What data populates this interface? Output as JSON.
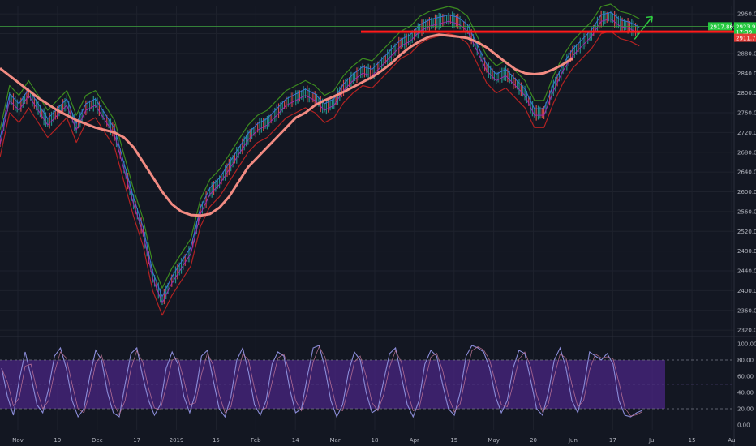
{
  "chart_data": [
    {
      "type": "candlestick",
      "title": "",
      "price_axis": {
        "ticks": [
          "2960.0",
          "2920.0",
          "2880.0",
          "2840.0",
          "2800.0",
          "2760.0",
          "2720.0",
          "2680.0",
          "2640.0",
          "2600.0",
          "2560.0",
          "2520.0",
          "2480.0",
          "2440.0",
          "2400.0",
          "2360.0",
          "2320.0"
        ],
        "ylim": [
          2312,
          2975
        ]
      },
      "time_axis": {
        "ticks": [
          "Nov",
          "19",
          "Dec",
          "17",
          "2019",
          "15",
          "Feb",
          "14",
          "Mar",
          "18",
          "Apr",
          "15",
          "May",
          "20",
          "Jun",
          "17",
          "Jul",
          "15",
          "Au"
        ]
      },
      "price_tags": [
        {
          "text": "2917.862",
          "color": "#26c940"
        },
        {
          "text": "2923.9",
          "color": "#26c940"
        },
        {
          "text": "17:39",
          "color": "#26c940"
        },
        {
          "text": "2911.7",
          "color": "#e53935"
        }
      ],
      "levels": [
        {
          "name": "resistance-red",
          "value": 2924,
          "color": "#ff1a1a"
        },
        {
          "name": "horizontal-green",
          "value": 2935,
          "color": "#3fa33f"
        }
      ],
      "price_series": [
        [
          0,
          2700
        ],
        [
          5,
          2790
        ],
        [
          10,
          2770
        ],
        [
          15,
          2800
        ],
        [
          20,
          2770
        ],
        [
          25,
          2740
        ],
        [
          30,
          2760
        ],
        [
          35,
          2780
        ],
        [
          40,
          2730
        ],
        [
          45,
          2770
        ],
        [
          50,
          2780
        ],
        [
          55,
          2750
        ],
        [
          60,
          2720
        ],
        [
          65,
          2650
        ],
        [
          70,
          2580
        ],
        [
          75,
          2520
        ],
        [
          80,
          2430
        ],
        [
          85,
          2380
        ],
        [
          90,
          2420
        ],
        [
          95,
          2450
        ],
        [
          100,
          2480
        ],
        [
          105,
          2560
        ],
        [
          110,
          2600
        ],
        [
          115,
          2620
        ],
        [
          120,
          2650
        ],
        [
          125,
          2680
        ],
        [
          130,
          2710
        ],
        [
          135,
          2730
        ],
        [
          140,
          2740
        ],
        [
          145,
          2760
        ],
        [
          150,
          2780
        ],
        [
          155,
          2790
        ],
        [
          160,
          2800
        ],
        [
          165,
          2790
        ],
        [
          170,
          2770
        ],
        [
          175,
          2780
        ],
        [
          180,
          2810
        ],
        [
          185,
          2830
        ],
        [
          190,
          2845
        ],
        [
          195,
          2840
        ],
        [
          200,
          2860
        ],
        [
          205,
          2880
        ],
        [
          210,
          2900
        ],
        [
          215,
          2910
        ],
        [
          220,
          2930
        ],
        [
          225,
          2940
        ],
        [
          230,
          2945
        ],
        [
          235,
          2950
        ],
        [
          240,
          2945
        ],
        [
          245,
          2930
        ],
        [
          250,
          2890
        ],
        [
          255,
          2850
        ],
        [
          260,
          2830
        ],
        [
          265,
          2840
        ],
        [
          270,
          2820
        ],
        [
          275,
          2800
        ],
        [
          280,
          2760
        ],
        [
          285,
          2760
        ],
        [
          290,
          2810
        ],
        [
          295,
          2850
        ],
        [
          300,
          2880
        ],
        [
          305,
          2900
        ],
        [
          310,
          2920
        ],
        [
          315,
          2950
        ],
        [
          320,
          2955
        ],
        [
          325,
          2940
        ],
        [
          330,
          2935
        ],
        [
          335,
          2925
        ]
      ],
      "ema_long": [
        [
          0,
          2850
        ],
        [
          10,
          2820
        ],
        [
          20,
          2790
        ],
        [
          30,
          2765
        ],
        [
          40,
          2745
        ],
        [
          50,
          2730
        ],
        [
          60,
          2720
        ],
        [
          65,
          2710
        ],
        [
          70,
          2690
        ],
        [
          75,
          2660
        ],
        [
          80,
          2630
        ],
        [
          85,
          2600
        ],
        [
          90,
          2575
        ],
        [
          95,
          2560
        ],
        [
          100,
          2553
        ],
        [
          105,
          2552
        ],
        [
          110,
          2555
        ],
        [
          115,
          2568
        ],
        [
          120,
          2590
        ],
        [
          125,
          2620
        ],
        [
          130,
          2650
        ],
        [
          135,
          2670
        ],
        [
          140,
          2690
        ],
        [
          145,
          2710
        ],
        [
          150,
          2730
        ],
        [
          155,
          2750
        ],
        [
          160,
          2760
        ],
        [
          165,
          2775
        ],
        [
          170,
          2785
        ],
        [
          175,
          2793
        ],
        [
          180,
          2802
        ],
        [
          185,
          2812
        ],
        [
          190,
          2822
        ],
        [
          195,
          2832
        ],
        [
          200,
          2845
        ],
        [
          205,
          2860
        ],
        [
          210,
          2878
        ],
        [
          215,
          2893
        ],
        [
          220,
          2905
        ],
        [
          225,
          2914
        ],
        [
          230,
          2918
        ],
        [
          235,
          2916
        ],
        [
          240,
          2914
        ],
        [
          245,
          2911
        ],
        [
          250,
          2903
        ],
        [
          255,
          2892
        ],
        [
          260,
          2877
        ],
        [
          265,
          2862
        ],
        [
          270,
          2848
        ],
        [
          275,
          2840
        ],
        [
          280,
          2838
        ],
        [
          285,
          2840
        ],
        [
          290,
          2848
        ],
        [
          295,
          2858
        ],
        [
          300,
          2870
        ]
      ],
      "stoch": {
        "ticks": [
          "100.00",
          "80.00",
          "60.00",
          "40.00",
          "20.00",
          "0.00"
        ],
        "ylim": [
          0,
          100
        ],
        "upper_band": 80,
        "lower_band": 20,
        "k_values": [
          70,
          35,
          12,
          55,
          90,
          60,
          25,
          15,
          45,
          85,
          95,
          70,
          30,
          10,
          20,
          60,
          92,
          80,
          40,
          15,
          10,
          50,
          88,
          95,
          60,
          30,
          12,
          25,
          70,
          90,
          75,
          35,
          15,
          40,
          85,
          92,
          55,
          20,
          10,
          35,
          80,
          95,
          65,
          25,
          12,
          30,
          75,
          90,
          85,
          45,
          15,
          20,
          60,
          95,
          98,
          70,
          30,
          10,
          25,
          65,
          90,
          80,
          40,
          15,
          20,
          55,
          88,
          95,
          60,
          25,
          10,
          30,
          75,
          92,
          85,
          50,
          20,
          12,
          40,
          85,
          98,
          95,
          90,
          70,
          35,
          15,
          30,
          70,
          92,
          88,
          55,
          20,
          12,
          40,
          80,
          95,
          70,
          30,
          15,
          45,
          90,
          85,
          80,
          88,
          75,
          30,
          12,
          10,
          15,
          18
        ]
      }
    }
  ],
  "colors": {
    "background": "#131722",
    "grid": "#1e222d",
    "stoch_band": "#4a2683",
    "stoch_line": "#8b8cd8",
    "ema_long": "#f28b82",
    "resistance": "#ff1a1a",
    "bull": "#26a69a",
    "green_line": "#3b8a1f",
    "red_line": "#b22222",
    "arrow": "#2ecc40"
  }
}
